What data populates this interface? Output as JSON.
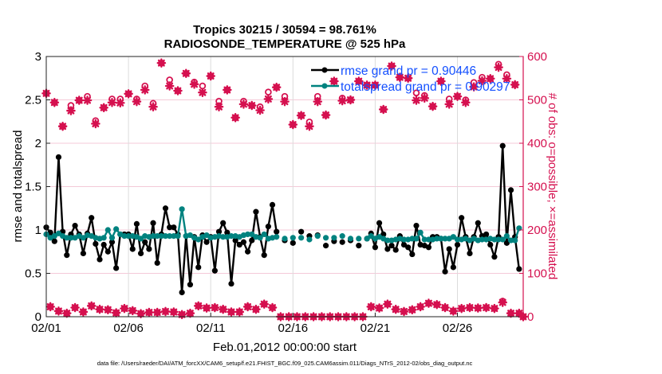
{
  "chart_data": {
    "type": "line",
    "title": [
      "Tropics 30215 / 30594 = 98.761%",
      "RADIOSONDE_TEMPERATURE @ 525 hPa"
    ],
    "xlabel": "Feb.01,2012 00:00:00 start",
    "ylabel": "rmse and totalspread",
    "ylabel_right": "# of obs: o=possible; ×=assimilated",
    "footnote": "data file: /Users/raeder/DAI/ATM_forcXX/CAM6_setup/f.e21.FHIST_BGC.f09_025.CAM6assim.011/Diags_NTrS_2012-02/obs_diag_output.nc",
    "xlim": [
      "02/01 00:00",
      "03/01 00:00"
    ],
    "x_tick_labels": [
      "02/01",
      "02/06",
      "02/11",
      "02/16",
      "02/21",
      "02/26"
    ],
    "ylim": [
      0,
      3
    ],
    "y_tick_labels": [
      "0",
      "0.5",
      "1",
      "1.5",
      "2",
      "2.5",
      "3"
    ],
    "ylim_right": [
      0,
      600
    ],
    "y_right_tick_labels": [
      "0",
      "100",
      "200",
      "300",
      "400",
      "500",
      "600"
    ],
    "grid": true,
    "legend_position": "top-right",
    "colors": {
      "rmse": "#000000",
      "totalspread": "#00827f",
      "obs": "#d5104f",
      "legend_text": "#1450ff",
      "right_axis": "#d5104f"
    },
    "x": [
      "02/01 00:00",
      "02/01 06:00",
      "02/01 12:00",
      "02/01 18:00",
      "02/02 00:00",
      "02/02 06:00",
      "02/02 12:00",
      "02/02 18:00",
      "02/03 00:00",
      "02/03 06:00",
      "02/03 12:00",
      "02/03 18:00",
      "02/04 00:00",
      "02/04 06:00",
      "02/04 12:00",
      "02/04 18:00",
      "02/05 00:00",
      "02/05 06:00",
      "02/05 12:00",
      "02/05 18:00",
      "02/06 00:00",
      "02/06 06:00",
      "02/06 12:00",
      "02/06 18:00",
      "02/07 00:00",
      "02/07 06:00",
      "02/07 12:00",
      "02/07 18:00",
      "02/08 00:00",
      "02/08 06:00",
      "02/08 12:00",
      "02/08 18:00",
      "02/09 00:00",
      "02/09 06:00",
      "02/09 12:00",
      "02/09 18:00",
      "02/10 00:00",
      "02/10 06:00",
      "02/10 12:00",
      "02/10 18:00",
      "02/11 00:00",
      "02/11 06:00",
      "02/11 12:00",
      "02/11 18:00",
      "02/12 00:00",
      "02/12 06:00",
      "02/12 12:00",
      "02/12 18:00",
      "02/13 00:00",
      "02/13 06:00",
      "02/13 12:00",
      "02/13 18:00",
      "02/14 00:00",
      "02/14 06:00",
      "02/14 12:00",
      "02/14 18:00",
      "02/15 00:00",
      "02/15 06:00",
      "02/15 12:00",
      "02/15 18:00",
      "02/16 00:00",
      "02/16 06:00",
      "02/16 12:00",
      "02/16 18:00",
      "02/17 00:00",
      "02/17 06:00",
      "02/17 12:00",
      "02/17 18:00",
      "02/18 00:00",
      "02/18 06:00",
      "02/18 12:00",
      "02/18 18:00",
      "02/19 00:00",
      "02/19 06:00",
      "02/19 12:00",
      "02/19 18:00",
      "02/20 00:00",
      "02/20 06:00",
      "02/20 12:00",
      "02/20 18:00",
      "02/21 00:00",
      "02/21 06:00",
      "02/21 12:00",
      "02/21 18:00",
      "02/22 00:00",
      "02/22 06:00",
      "02/22 12:00",
      "02/22 18:00",
      "02/23 00:00",
      "02/23 06:00",
      "02/23 12:00",
      "02/23 18:00",
      "02/24 00:00",
      "02/24 06:00",
      "02/24 12:00",
      "02/24 18:00",
      "02/25 00:00",
      "02/25 06:00",
      "02/25 12:00",
      "02/25 18:00",
      "02/26 00:00",
      "02/26 06:00",
      "02/26 12:00",
      "02/26 18:00",
      "02/27 00:00",
      "02/27 06:00",
      "02/27 12:00",
      "02/27 18:00",
      "02/28 00:00",
      "02/28 06:00",
      "02/28 12:00",
      "02/28 18:00",
      "02/29 00:00",
      "02/29 06:00",
      "02/29 12:00",
      "02/29 18:00",
      "03/01 00:00"
    ],
    "series": [
      {
        "name": "rmse grand pr = 0.90446",
        "axis": "left",
        "values": [
          1.03,
          0.97,
          0.87,
          1.84,
          0.98,
          0.71,
          0.95,
          1.05,
          0.95,
          0.73,
          0.96,
          1.14,
          0.84,
          0.66,
          0.83,
          0.75,
          0.86,
          0.56,
          0.95,
          0.95,
          0.95,
          0.78,
          1.07,
          0.73,
          0.86,
          0.78,
          1.08,
          0.62,
          0.95,
          1.25,
          1.03,
          1.03,
          0.95,
          0.28,
          0.93,
          0.37,
          0.92,
          0.57,
          0.94,
          0.86,
          0.92,
          0.53,
          0.98,
          1.08,
          0.97,
          0.38,
          0.88,
          0.83,
          0.86,
          0.75,
          0.88,
          1.21,
          0.92,
          0.71,
          1.04,
          1.29,
          0.98,
          null,
          0.88,
          null,
          0.85,
          null,
          0.98,
          null,
          0.93,
          null,
          0.94,
          null,
          0.82,
          null,
          0.87,
          null,
          0.86,
          null,
          0.88,
          null,
          0.82,
          null,
          0.9,
          0.96,
          0.8,
          1.08,
          0.95,
          0.78,
          0.82,
          0.77,
          0.93,
          0.83,
          0.8,
          0.72,
          1.05,
          0.83,
          0.82,
          0.8,
          0.92,
          0.92,
          0.9,
          0.52,
          0.78,
          0.57,
          0.83,
          1.14,
          0.92,
          0.73,
          0.92,
          1.08,
          0.93,
          0.95,
          0.83,
          0.69,
          0.92,
          1.97,
          0.85,
          1.46,
          0.92,
          0.55,
          null
        ]
      },
      {
        "name": "totalspread grand pr = 0.90297",
        "axis": "left",
        "values": [
          0.95,
          0.91,
          0.93,
          0.96,
          0.93,
          0.91,
          0.91,
          0.91,
          0.93,
          0.91,
          0.94,
          0.93,
          0.91,
          0.9,
          0.91,
          1.0,
          0.91,
          1.01,
          0.95,
          0.93,
          0.93,
          0.93,
          0.92,
          0.9,
          0.93,
          0.92,
          0.93,
          0.93,
          0.93,
          0.93,
          0.93,
          0.93,
          0.93,
          1.24,
          0.93,
          0.94,
          0.91,
          0.89,
          0.92,
          0.94,
          0.91,
          0.92,
          0.93,
          0.92,
          0.92,
          0.93,
          0.93,
          0.92,
          0.94,
          0.95,
          0.95,
          0.92,
          0.91,
          0.95,
          0.9,
          0.91,
          0.92,
          null,
          0.9,
          null,
          0.91,
          null,
          0.91,
          null,
          0.89,
          null,
          0.93,
          null,
          0.91,
          null,
          0.91,
          null,
          0.93,
          null,
          0.9,
          null,
          0.9,
          null,
          0.9,
          0.93,
          0.9,
          0.92,
          0.9,
          0.88,
          0.88,
          0.89,
          0.9,
          0.89,
          0.89,
          0.9,
          0.9,
          0.97,
          0.89,
          0.89,
          0.89,
          0.9,
          0.9,
          0.9,
          0.9,
          0.92,
          0.89,
          0.89,
          0.9,
          0.88,
          0.9,
          0.88,
          0.89,
          0.89,
          0.9,
          0.89,
          0.89,
          0.89,
          0.93,
          0.88,
          0.88,
          1.02,
          null
        ]
      },
      {
        "name": "o=possible",
        "axis": "right",
        "values": [
          515,
          23,
          494,
          13,
          439,
          8,
          487,
          21,
          499,
          11,
          508,
          25,
          452,
          17,
          482,
          16,
          502,
          9,
          502,
          19,
          514,
          14,
          502,
          7,
          532,
          10,
          492,
          10,
          585,
          12,
          546,
          11,
          521,
          5,
          561,
          8,
          541,
          25,
          532,
          20,
          555,
          21,
          497,
          17,
          523,
          11,
          459,
          11,
          497,
          23,
          487,
          17,
          484,
          29,
          518,
          21,
          529,
          0,
          508,
          0,
          443,
          0,
          464,
          0,
          449,
          0,
          508,
          0,
          465,
          0,
          543,
          0,
          504,
          0,
          500,
          0,
          543,
          0,
          534,
          23,
          534,
          20,
          478,
          29,
          578,
          17,
          552,
          12,
          550,
          16,
          516,
          23,
          510,
          31,
          485,
          28,
          543,
          21,
          502,
          13,
          508,
          19,
          500,
          21,
          540,
          20,
          552,
          21,
          549,
          19,
          582,
          36,
          558,
          8,
          535,
          8,
          0
        ]
      },
      {
        "name": "×=assimilated",
        "axis": "right",
        "values": [
          515,
          23,
          494,
          13,
          439,
          8,
          475,
          21,
          499,
          11,
          499,
          25,
          445,
          17,
          482,
          16,
          494,
          9,
          493,
          19,
          514,
          14,
          496,
          7,
          523,
          10,
          484,
          10,
          585,
          12,
          532,
          11,
          521,
          5,
          561,
          8,
          536,
          25,
          517,
          20,
          555,
          21,
          484,
          17,
          523,
          11,
          459,
          11,
          490,
          23,
          487,
          17,
          476,
          29,
          502,
          21,
          529,
          0,
          496,
          0,
          443,
          0,
          464,
          0,
          439,
          0,
          496,
          0,
          465,
          0,
          543,
          0,
          498,
          0,
          500,
          0,
          543,
          0,
          534,
          23,
          534,
          20,
          478,
          29,
          578,
          17,
          552,
          12,
          550,
          16,
          499,
          23,
          504,
          31,
          485,
          28,
          543,
          21,
          490,
          13,
          508,
          19,
          494,
          21,
          530,
          20,
          544,
          21,
          549,
          19,
          575,
          33,
          549,
          8,
          535,
          8,
          0
        ]
      }
    ]
  }
}
